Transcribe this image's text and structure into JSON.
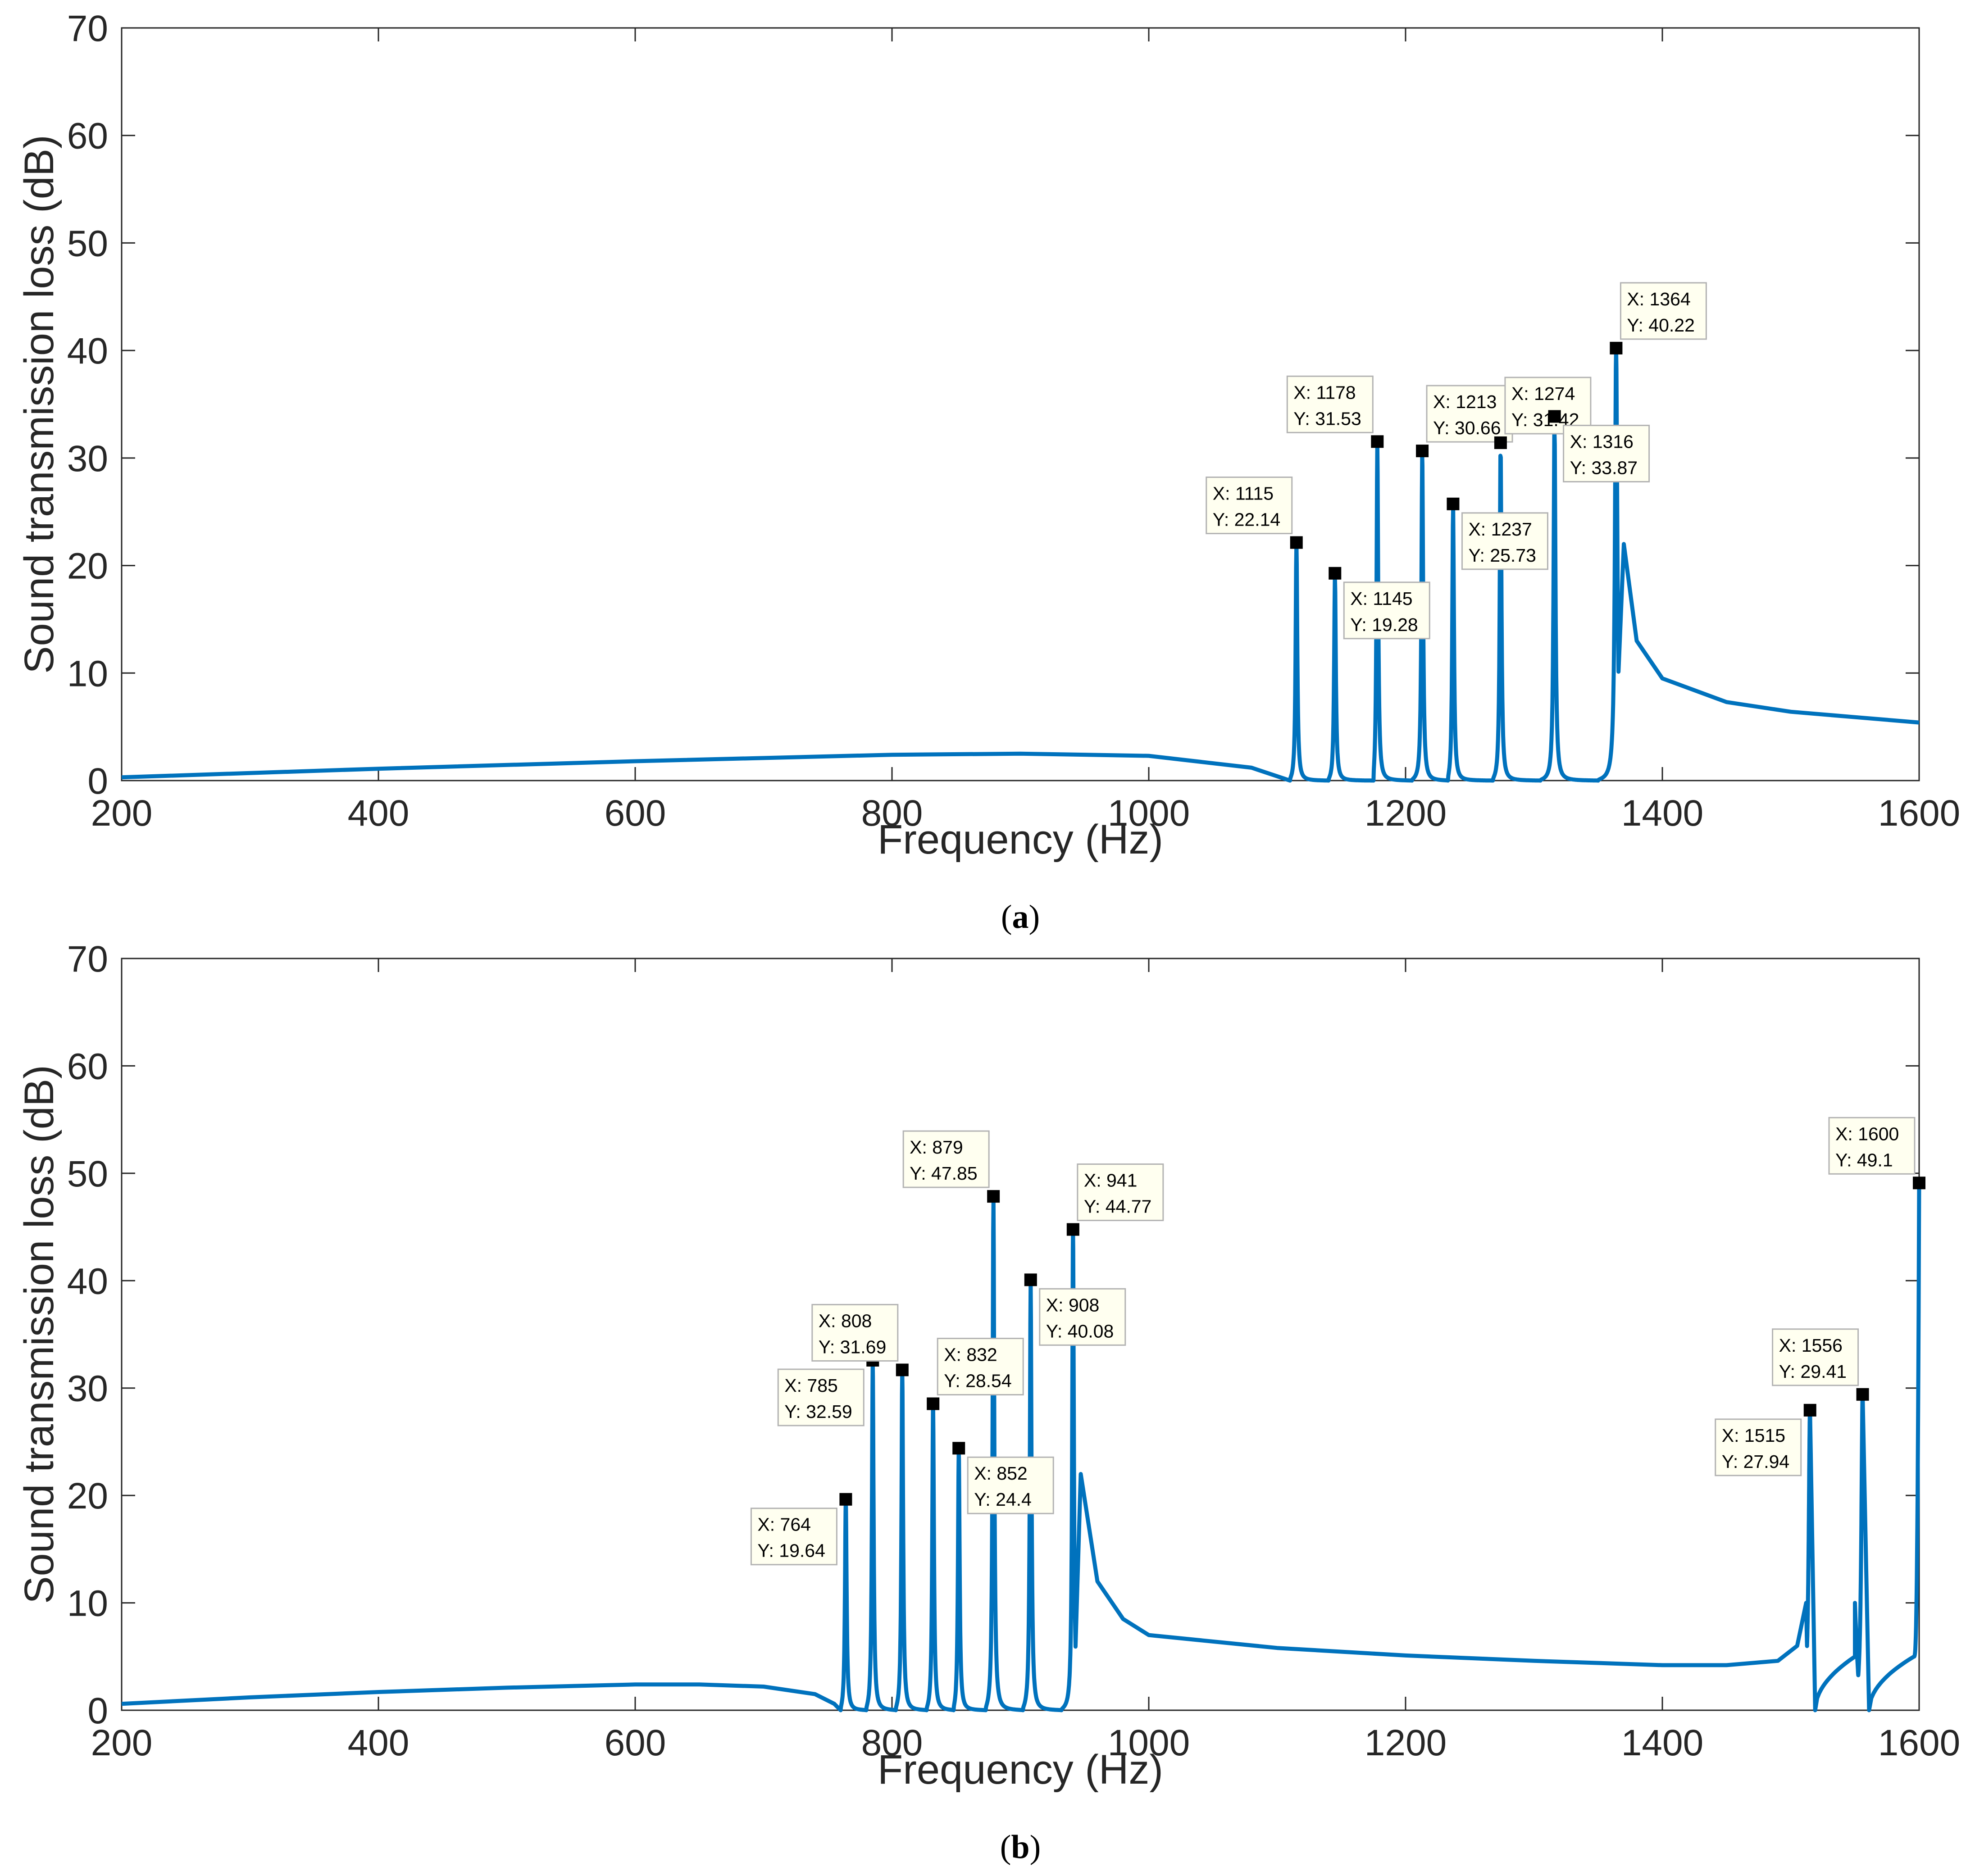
{
  "colors": {
    "line": "#0072BD",
    "axis": "#262626",
    "tip_bg": "#FFFFF0",
    "tip_border": "#B3B3B3"
  },
  "chart_data": [
    {
      "id": "a",
      "type": "line",
      "caption_label": "a",
      "xlabel": "Frequency (Hz)",
      "ylabel": "Sound transmission loss (dB)",
      "xlim": [
        200,
        1600
      ],
      "ylim": [
        0,
        70
      ],
      "xticks": [
        "200",
        "400",
        "600",
        "800",
        "1000",
        "1200",
        "1400",
        "1600"
      ],
      "yticks": [
        "0",
        "10",
        "20",
        "30",
        "40",
        "50",
        "60",
        "70"
      ],
      "baseline": [
        [
          200,
          0.3
        ],
        [
          400,
          1.1
        ],
        [
          600,
          1.8
        ],
        [
          800,
          2.4
        ],
        [
          900,
          2.5
        ],
        [
          1000,
          2.3
        ],
        [
          1080,
          1.2
        ],
        [
          1105,
          0.2
        ],
        [
          1110,
          0
        ]
      ],
      "spikes": [
        {
          "fz": 1115,
          "peak": 22.14,
          "zero_after": 1140
        },
        {
          "fz": 1145,
          "peak": 19.28,
          "zero_after": 1175
        },
        {
          "fz": 1178,
          "peak": 31.53,
          "zero_after": 1205
        },
        {
          "fz": 1213,
          "peak": 30.66,
          "zero_after": 1233
        },
        {
          "fz": 1237,
          "peak": 25.73,
          "zero_after": 1268
        },
        {
          "fz": 1274,
          "peak": 31.42,
          "zero_after": 1305
        },
        {
          "fz": 1316,
          "peak": 33.87,
          "zero_after": 1350
        }
      ],
      "tail_peak": {
        "fz": 1364,
        "peak": 40.22
      },
      "tail": [
        [
          1370,
          22
        ],
        [
          1380,
          13
        ],
        [
          1400,
          9.5
        ],
        [
          1450,
          7.3
        ],
        [
          1500,
          6.4
        ],
        [
          1550,
          5.9
        ],
        [
          1600,
          5.4
        ]
      ],
      "datatips": [
        {
          "x": "1115",
          "y": "22.14",
          "fx": 1115,
          "fy": 22.14,
          "place": "above-left"
        },
        {
          "x": "1145",
          "y": "19.28",
          "fx": 1145,
          "fy": 19.28,
          "place": "below-right"
        },
        {
          "x": "1178",
          "y": "31.53",
          "fx": 1178,
          "fy": 31.53,
          "place": "above-left"
        },
        {
          "x": "1213",
          "y": "30.66",
          "fx": 1213,
          "fy": 30.66,
          "place": "above-right"
        },
        {
          "x": "1237",
          "y": "25.73",
          "fx": 1237,
          "fy": 25.73,
          "place": "below-right"
        },
        {
          "x": "1274",
          "y": "31.42",
          "fx": 1274,
          "fy": 31.42,
          "place": "above-right"
        },
        {
          "x": "1316",
          "y": "33.87",
          "fx": 1316,
          "fy": 33.87,
          "place": "below-right"
        },
        {
          "x": "1364",
          "y": "40.22",
          "fx": 1364,
          "fy": 40.22,
          "place": "above-right"
        }
      ]
    },
    {
      "id": "b",
      "type": "line",
      "caption_label": "b",
      "xlabel": "Frequency (Hz)",
      "ylabel": "Sound transmission loss (dB)",
      "xlim": [
        200,
        1600
      ],
      "ylim": [
        0,
        70
      ],
      "xticks": [
        "200",
        "400",
        "600",
        "800",
        "1000",
        "1200",
        "1400",
        "1600"
      ],
      "yticks": [
        "0",
        "10",
        "20",
        "30",
        "40",
        "50",
        "60",
        "70"
      ],
      "baseline": [
        [
          200,
          0.6
        ],
        [
          300,
          1.2
        ],
        [
          400,
          1.7
        ],
        [
          500,
          2.1
        ],
        [
          600,
          2.4
        ],
        [
          650,
          2.4
        ],
        [
          700,
          2.2
        ],
        [
          740,
          1.5
        ],
        [
          755,
          0.6
        ],
        [
          760,
          0
        ]
      ],
      "spikes": [
        {
          "fz": 764,
          "peak": 19.64,
          "zero_after": 780
        },
        {
          "fz": 785,
          "peak": 32.59,
          "zero_after": 803
        },
        {
          "fz": 808,
          "peak": 31.69,
          "zero_after": 827
        },
        {
          "fz": 832,
          "peak": 28.54,
          "zero_after": 848
        },
        {
          "fz": 852,
          "peak": 24.4,
          "zero_after": 873
        },
        {
          "fz": 879,
          "peak": 47.85,
          "zero_after": 902
        },
        {
          "fz": 908,
          "peak": 40.08,
          "zero_after": 932
        }
      ],
      "tail_peak": {
        "fz": 941,
        "peak": 44.77
      },
      "tail": [
        [
          947,
          22
        ],
        [
          960,
          12
        ],
        [
          980,
          8.5
        ],
        [
          1000,
          7
        ],
        [
          1100,
          5.8
        ],
        [
          1200,
          5.1
        ],
        [
          1300,
          4.6
        ],
        [
          1400,
          4.2
        ],
        [
          1450,
          4.2
        ],
        [
          1490,
          4.6
        ],
        [
          1505,
          6
        ],
        [
          1512,
          10
        ]
      ],
      "spikes2": [
        {
          "fz": 1515,
          "peak": 27.94,
          "zero_after": 1519
        },
        {
          "fz": 1556,
          "peak": 29.41,
          "zero_after": 1561
        }
      ],
      "end_point": [
        1600,
        49.1
      ],
      "datatips": [
        {
          "x": "764",
          "y": "19.64",
          "fx": 764,
          "fy": 19.64,
          "place": "below-left"
        },
        {
          "x": "785",
          "y": "32.59",
          "fx": 785,
          "fy": 32.59,
          "place": "below-left"
        },
        {
          "x": "808",
          "y": "31.69",
          "fx": 808,
          "fy": 31.69,
          "place": "above-left"
        },
        {
          "x": "832",
          "y": "28.54",
          "fx": 832,
          "fy": 28.54,
          "place": "above-right"
        },
        {
          "x": "852",
          "y": "24.4",
          "fx": 852,
          "fy": 24.4,
          "place": "below-right"
        },
        {
          "x": "879",
          "y": "47.85",
          "fx": 879,
          "fy": 47.85,
          "place": "above-left"
        },
        {
          "x": "908",
          "y": "40.08",
          "fx": 908,
          "fy": 40.08,
          "place": "below-right"
        },
        {
          "x": "941",
          "y": "44.77",
          "fx": 941,
          "fy": 44.77,
          "place": "above-right"
        },
        {
          "x": "1515",
          "y": "27.94",
          "fx": 1515,
          "fy": 27.94,
          "place": "below-left"
        },
        {
          "x": "1556",
          "y": "29.41",
          "fx": 1556,
          "fy": 29.41,
          "place": "above-left"
        },
        {
          "x": "1600",
          "y": "49.1",
          "fx": 1600,
          "fy": 49.1,
          "place": "above-left"
        }
      ]
    }
  ]
}
